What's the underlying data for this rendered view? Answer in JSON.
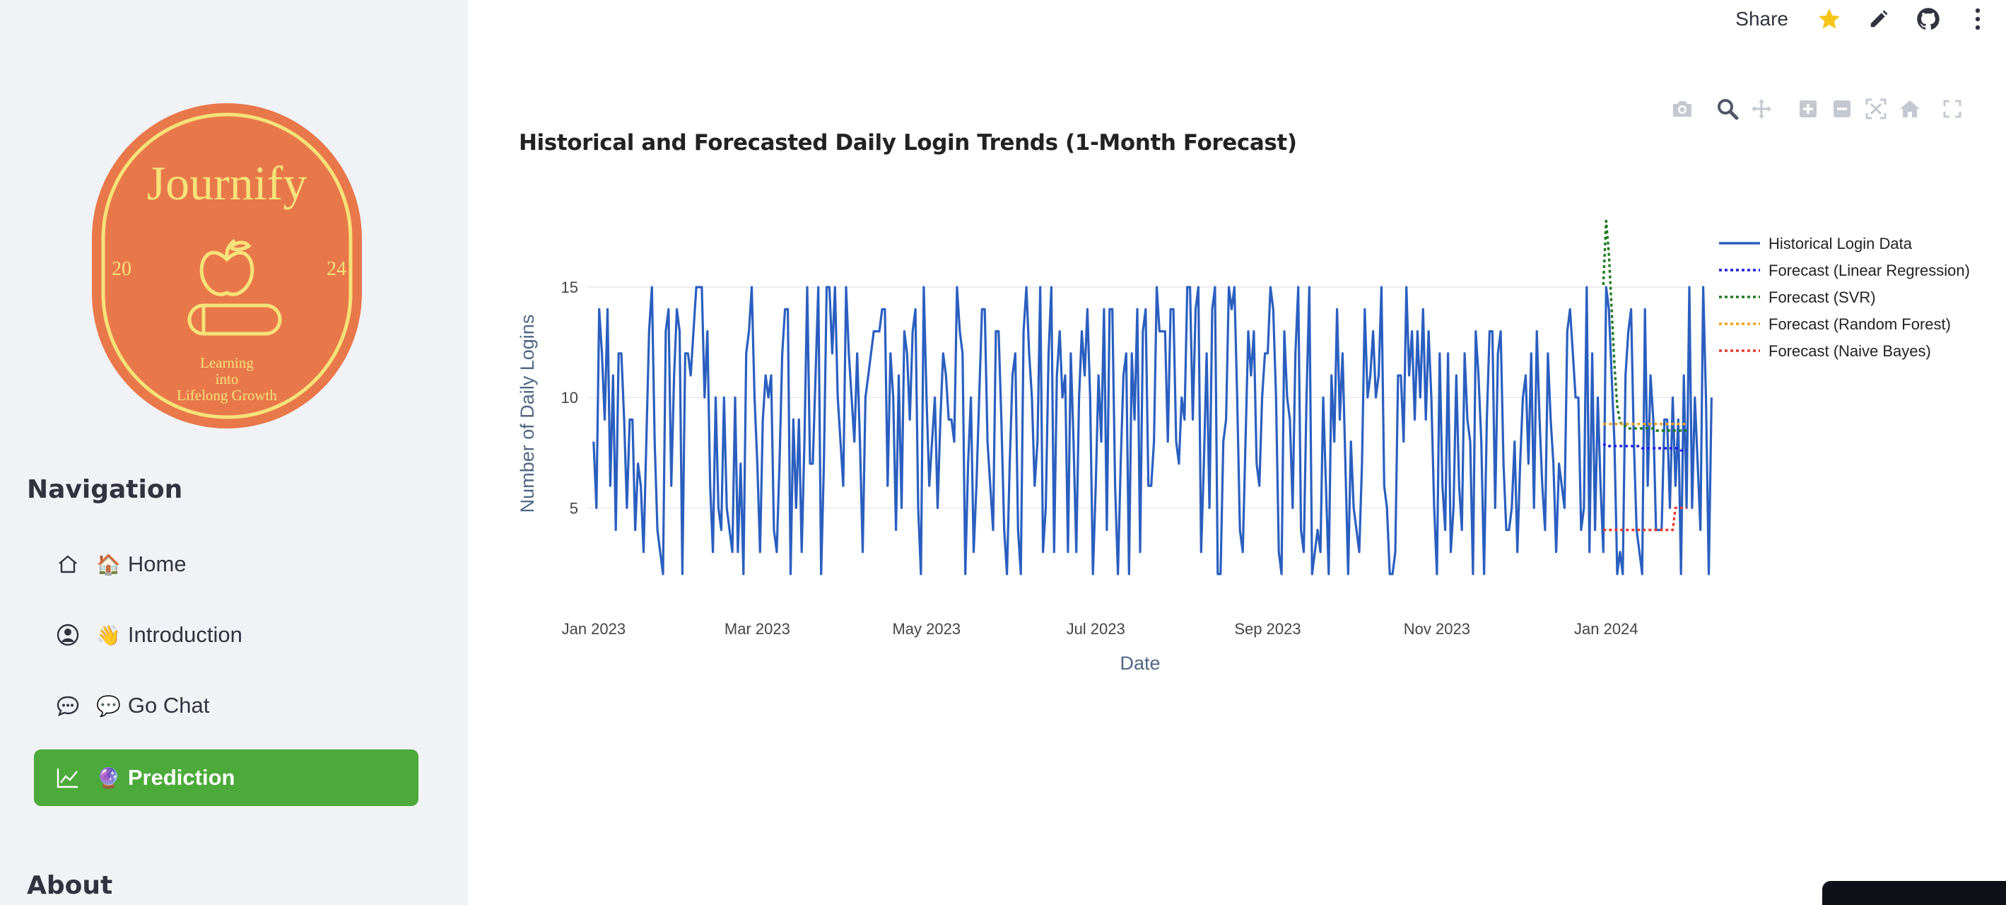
{
  "sidebar": {
    "logo": {
      "brand": "Journify",
      "year_left": "20",
      "year_right": "24",
      "tagline_1": "Learning",
      "tagline_2": "into",
      "tagline_3": "Lifelong Growth"
    },
    "navigation_heading": "Navigation",
    "items": [
      {
        "icon": "house-icon",
        "emoji": "🏠",
        "label": "Home",
        "active": false
      },
      {
        "icon": "person-circle-icon",
        "emoji": "👋",
        "label": "Introduction",
        "active": false
      },
      {
        "icon": "chat-dots-icon",
        "emoji": "💬",
        "label": "Go Chat",
        "active": false
      },
      {
        "icon": "graph-up-icon",
        "emoji": "🔮",
        "label": "Prediction",
        "active": true
      }
    ],
    "about_heading": "About"
  },
  "header": {
    "share_label": "Share",
    "icons": [
      "star-icon",
      "pencil-icon",
      "github-icon",
      "more-vertical-icon"
    ]
  },
  "colors": {
    "sidebar_bg": "#f0f2f6",
    "active_nav": "#4caa3a",
    "logo_orange": "#e8784a",
    "logo_yellow": "#f6e27a",
    "star": "#f5c518"
  },
  "chart_data": {
    "type": "line",
    "title": "Historical and Forecasted Daily Login Trends (1-Month Forecast)",
    "xlabel": "Date",
    "ylabel": "Number of Daily Logins",
    "x_ticks": [
      "Jan 2023",
      "Mar 2023",
      "May 2023",
      "Jul 2023",
      "Sep 2023",
      "Nov 2023",
      "Jan 2024"
    ],
    "y_ticks": [
      5,
      10,
      15
    ],
    "xlim": [
      "2022-12-30",
      "2024-01-31"
    ],
    "ylim": [
      1.1,
      18.4
    ],
    "grid": true,
    "legend_position": "top-right",
    "series": [
      {
        "name": "Historical Login Data",
        "color": "#2a5fc0",
        "dash": "solid",
        "start": "2023-01-01",
        "values": [
          8,
          5,
          14,
          12,
          9,
          14,
          6,
          11,
          4,
          12,
          12,
          9,
          5,
          9,
          9,
          4,
          7,
          6,
          3,
          8,
          13,
          15,
          8,
          4,
          3,
          2,
          13,
          14,
          6,
          11,
          14,
          13,
          2,
          12,
          12,
          11,
          13,
          15,
          15,
          15,
          10,
          13,
          6,
          3,
          10,
          5,
          4,
          10,
          5,
          4,
          3,
          10,
          3,
          7,
          2,
          12,
          13,
          15,
          10,
          7,
          3,
          9,
          11,
          10,
          11,
          4,
          3,
          7,
          12,
          14,
          14,
          2,
          9,
          5,
          9,
          3,
          8,
          15,
          7,
          7,
          11,
          15,
          2,
          7,
          15,
          15,
          12,
          15,
          10,
          8,
          6,
          15,
          12,
          10,
          8,
          12,
          8,
          3,
          10,
          11,
          12,
          13,
          13,
          13,
          14,
          14,
          6,
          12,
          10,
          4,
          11,
          5,
          13,
          12,
          9,
          13,
          14,
          5,
          2,
          15,
          10,
          6,
          8,
          10,
          5,
          9,
          12,
          11,
          9,
          9,
          8,
          15,
          13,
          12,
          2,
          7,
          10,
          3,
          6,
          10,
          14,
          14,
          8,
          6,
          4,
          13,
          13,
          9,
          4,
          2,
          7,
          11,
          12,
          4,
          2,
          13,
          15,
          12,
          10,
          6,
          8,
          15,
          3,
          5,
          12,
          15,
          3,
          11,
          13,
          10,
          11,
          3,
          12,
          8,
          3,
          10,
          13,
          11,
          14,
          10,
          2,
          6,
          11,
          8,
          14,
          4,
          14,
          14,
          6,
          2,
          7,
          11,
          12,
          2,
          12,
          9,
          14,
          3,
          13,
          14,
          6,
          6,
          8,
          15,
          13,
          13,
          13,
          8,
          14,
          14,
          8,
          7,
          10,
          9,
          15,
          15,
          9,
          14,
          15,
          3,
          7,
          12,
          5,
          14,
          15,
          2,
          2,
          8,
          9,
          15,
          14,
          15,
          10,
          4,
          3,
          8,
          13,
          11,
          13,
          7,
          6,
          10,
          12,
          12,
          15,
          14,
          10,
          3,
          2,
          13,
          10,
          9,
          5,
          12,
          15,
          4,
          3,
          10,
          15,
          2,
          3,
          4,
          3,
          10,
          6,
          2,
          11,
          8,
          14,
          9,
          12,
          7,
          2,
          8,
          5,
          4,
          3,
          7,
          14,
          10,
          11,
          13,
          10,
          11,
          15,
          6,
          5,
          2,
          2,
          3,
          11,
          11,
          8,
          15,
          11,
          13,
          9,
          13,
          10,
          14,
          9,
          13,
          10,
          5,
          2,
          12,
          6,
          4,
          12,
          3,
          5,
          11,
          6,
          4,
          12,
          9,
          8,
          2,
          13,
          11,
          8,
          2,
          9,
          13,
          13,
          5,
          12,
          13,
          7,
          4,
          4,
          5,
          8,
          3,
          7,
          10,
          11,
          7,
          12,
          5,
          13,
          9,
          6,
          4,
          12,
          9,
          7,
          3,
          7,
          6,
          5,
          13,
          14,
          12,
          10,
          10,
          4,
          5,
          15,
          3,
          12,
          4,
          10,
          6,
          3,
          15,
          14,
          11,
          8,
          2,
          3,
          2,
          11,
          13,
          14,
          8,
          4,
          3,
          2,
          14,
          6,
          11,
          9,
          4,
          4,
          4,
          9,
          9,
          5,
          10,
          6,
          9,
          2,
          11,
          5,
          15,
          5,
          10,
          7,
          4,
          15,
          10,
          2,
          10
        ]
      },
      {
        "name": "Forecast (Linear Regression)",
        "color": "#1f1fe6",
        "dash": "dot",
        "start": "2023-12-31",
        "values": [
          7.9,
          7.8,
          7.8,
          7.8,
          7.8,
          7.8,
          7.8,
          7.8,
          7.8,
          7.8,
          7.8,
          7.8,
          7.8,
          7.8,
          7.7,
          7.7,
          7.7,
          7.7,
          7.7,
          7.7,
          7.7,
          7.7,
          7.7,
          7.7,
          7.7,
          7.7,
          7.7,
          7.7,
          7.6,
          7.6,
          7.6
        ]
      },
      {
        "name": "Forecast (SVR)",
        "color": "#1d7a1d",
        "dash": "dot",
        "start": "2023-12-31",
        "values": [
          15.1,
          18.0,
          16.5,
          14.0,
          11.5,
          9.6,
          8.9,
          8.7,
          8.7,
          8.6,
          8.6,
          8.6,
          8.6,
          8.6,
          8.6,
          8.6,
          8.6,
          8.6,
          8.6,
          8.5,
          8.5,
          8.5,
          8.5,
          8.5,
          8.5,
          8.5,
          8.5,
          8.5,
          8.5,
          8.5,
          8.5
        ]
      },
      {
        "name": "Forecast (Random Forest)",
        "color": "#f2a31a",
        "dash": "dot",
        "start": "2023-12-31",
        "values": [
          8.8,
          8.8,
          8.8,
          8.8,
          8.8,
          8.8,
          8.8,
          8.8,
          8.8,
          8.8,
          8.8,
          8.8,
          8.8,
          8.8,
          8.8,
          8.8,
          8.8,
          8.8,
          8.8,
          8.8,
          8.8,
          8.8,
          8.8,
          8.8,
          8.8,
          8.8,
          8.8,
          8.8,
          8.8,
          8.8,
          8.8
        ]
      },
      {
        "name": "Forecast (Naive Bayes)",
        "color": "#e63a2e",
        "dash": "dot",
        "start": "2023-12-31",
        "values": [
          4,
          4,
          4,
          4,
          4,
          4,
          4,
          4,
          4,
          4,
          4,
          4,
          4,
          4,
          4,
          4,
          4,
          4,
          4,
          4,
          4,
          4,
          4,
          4,
          4,
          4,
          5,
          5,
          5,
          5,
          5
        ]
      }
    ]
  }
}
